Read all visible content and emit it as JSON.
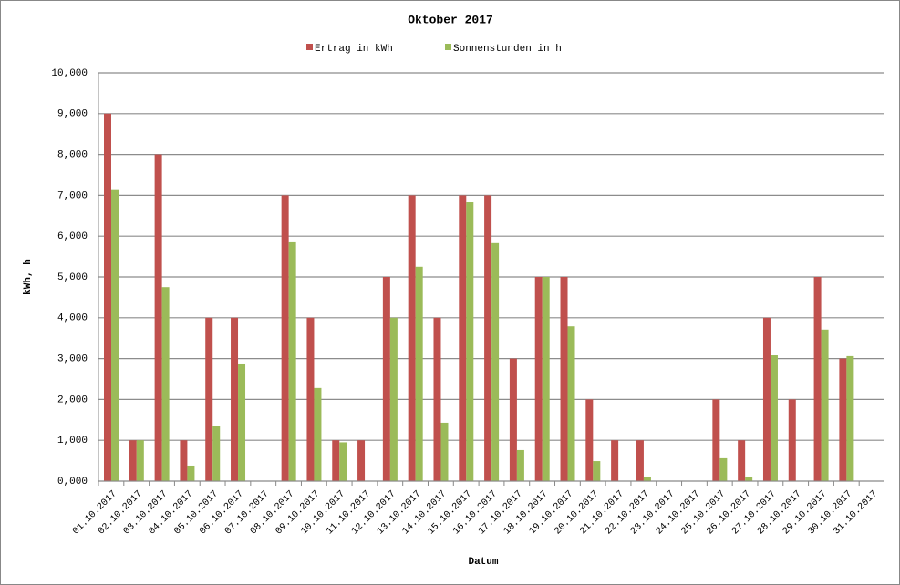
{
  "chart_data": {
    "type": "bar",
    "title": "Oktober 2017",
    "x_label": "Datum",
    "y_label": "kWh, h",
    "legend": "top",
    "grid": true,
    "categories": [
      "01.10.2017",
      "02.10.2017",
      "03.10.2017",
      "04.10.2017",
      "05.10.2017",
      "06.10.2017",
      "07.10.2017",
      "08.10.2017",
      "09.10.2017",
      "10.10.2017",
      "11.10.2017",
      "12.10.2017",
      "13.10.2017",
      "14.10.2017",
      "15.10.2017",
      "16.10.2017",
      "17.10.2017",
      "18.10.2017",
      "19.10.2017",
      "20.10.2017",
      "21.10.2017",
      "22.10.2017",
      "23.10.2017",
      "24.10.2017",
      "25.10.2017",
      "26.10.2017",
      "27.10.2017",
      "28.10.2017",
      "29.10.2017",
      "30.10.2017",
      "31.10.2017"
    ],
    "series": [
      {
        "name": "Ertrag in kWh",
        "color": "#c0504d",
        "values": [
          9,
          1,
          8,
          1,
          4,
          4,
          0,
          7,
          4,
          1,
          1,
          5,
          7,
          4,
          7,
          7,
          3,
          5,
          5,
          2,
          1,
          1,
          0,
          0,
          2,
          1,
          4,
          2,
          5,
          3,
          0
        ]
      },
      {
        "name": "Sonnenstunden in h",
        "color": "#9bbb59",
        "values": [
          7.15,
          1,
          4.75,
          0.38,
          1.34,
          2.88,
          0,
          5.85,
          2.28,
          0.95,
          0,
          4,
          5.25,
          1.43,
          6.83,
          5.83,
          0.76,
          5,
          3.79,
          0.49,
          0,
          0.11,
          0,
          0,
          0.56,
          0.11,
          3.08,
          0,
          3.71,
          3.06,
          0
        ]
      }
    ],
    "ylim": [
      0,
      10
    ],
    "yticks": [
      {
        "value": 0,
        "label": "0,000"
      },
      {
        "value": 1,
        "label": "1,000"
      },
      {
        "value": 2,
        "label": "2,000"
      },
      {
        "value": 3,
        "label": "3,000"
      },
      {
        "value": 4,
        "label": "4,000"
      },
      {
        "value": 5,
        "label": "5,000"
      },
      {
        "value": 6,
        "label": "6,000"
      },
      {
        "value": 7,
        "label": "7,000"
      },
      {
        "value": 8,
        "label": "8,000"
      },
      {
        "value": 9,
        "label": "9,000"
      },
      {
        "value": 10,
        "label": "10,000"
      }
    ]
  }
}
